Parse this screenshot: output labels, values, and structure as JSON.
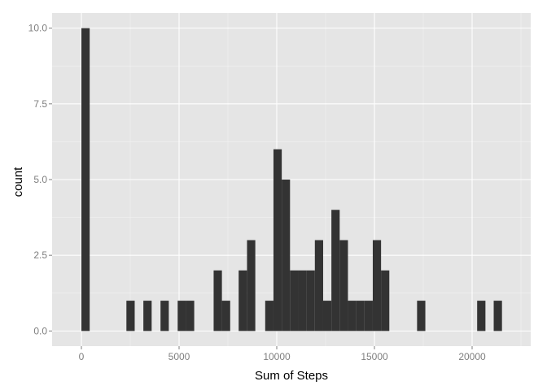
{
  "chart_data": {
    "type": "bar",
    "subtype": "histogram",
    "xlabel": "Sum of Steps",
    "ylabel": "count",
    "xlim": [
      -1500,
      23000
    ],
    "ylim": [
      -0.5,
      10.5
    ],
    "x_ticks": [
      0,
      5000,
      10000,
      15000,
      20000
    ],
    "x_tick_labels": [
      "0",
      "5000",
      "10000",
      "15000",
      "20000"
    ],
    "y_ticks": [
      0,
      2.5,
      5,
      7.5,
      10
    ],
    "y_tick_labels": [
      "0.0",
      "2.5",
      "5.0",
      "7.5",
      "10.0"
    ],
    "bin_width": 424,
    "bins": [
      {
        "x": 212,
        "count": 10
      },
      {
        "x": 2516,
        "count": 1
      },
      {
        "x": 3384,
        "count": 1
      },
      {
        "x": 4262,
        "count": 1
      },
      {
        "x": 5140,
        "count": 1
      },
      {
        "x": 5563,
        "count": 1
      },
      {
        "x": 6981,
        "count": 2
      },
      {
        "x": 7404,
        "count": 1
      },
      {
        "x": 8262,
        "count": 2
      },
      {
        "x": 8690,
        "count": 3
      },
      {
        "x": 9620,
        "count": 1
      },
      {
        "x": 10044,
        "count": 6
      },
      {
        "x": 10467,
        "count": 5
      },
      {
        "x": 10891,
        "count": 2
      },
      {
        "x": 11314,
        "count": 2
      },
      {
        "x": 11738,
        "count": 2
      },
      {
        "x": 12162,
        "count": 3
      },
      {
        "x": 12585,
        "count": 1
      },
      {
        "x": 13009,
        "count": 4
      },
      {
        "x": 13432,
        "count": 3
      },
      {
        "x": 13856,
        "count": 1
      },
      {
        "x": 14280,
        "count": 1
      },
      {
        "x": 14703,
        "count": 1
      },
      {
        "x": 15127,
        "count": 3
      },
      {
        "x": 15550,
        "count": 2
      },
      {
        "x": 17394,
        "count": 1
      },
      {
        "x": 20470,
        "count": 1
      },
      {
        "x": 21317,
        "count": 1
      }
    ],
    "grid": true,
    "colors": {
      "panel_background": "#e5e5e5",
      "major_grid": "#ffffff",
      "minor_grid": "#f2f2f2",
      "bar_fill": "#333333"
    }
  }
}
